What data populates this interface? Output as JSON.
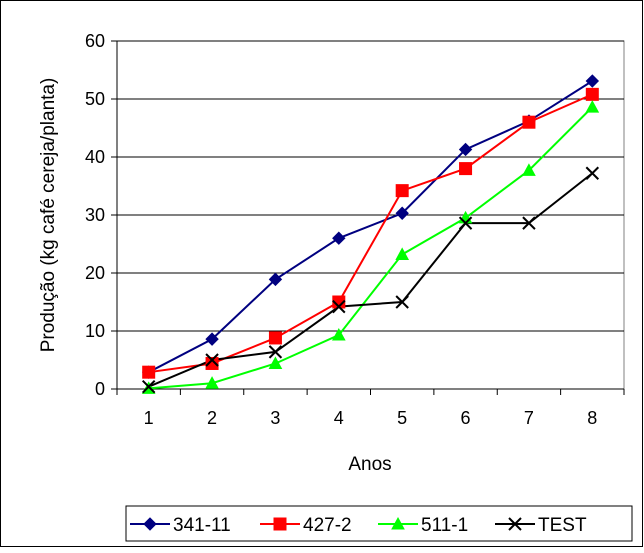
{
  "chart_data": {
    "type": "line",
    "title": "",
    "xlabel": "Anos",
    "ylabel": "Produção (kg café cereja/planta)",
    "categories": [
      "1",
      "2",
      "3",
      "4",
      "5",
      "6",
      "7",
      "8"
    ],
    "ylim": [
      0,
      60
    ],
    "yticks": [
      "0",
      "10",
      "20",
      "30",
      "40",
      "50",
      "60"
    ],
    "grid": "horizontal",
    "legend_position": "bottom",
    "series": [
      {
        "name": "341-11",
        "color": "#000080",
        "marker": "diamond",
        "values": [
          2.9,
          8.6,
          18.9,
          26.0,
          30.3,
          41.3,
          46.2,
          53.1
        ]
      },
      {
        "name": "427-2",
        "color": "#FF0000",
        "marker": "square",
        "values": [
          2.9,
          4.4,
          8.8,
          15.0,
          34.2,
          38.0,
          46.0,
          50.8
        ]
      },
      {
        "name": "511-1",
        "color": "#00FF00",
        "marker": "triangle",
        "values": [
          0.1,
          1.0,
          4.4,
          9.3,
          23.2,
          29.5,
          37.7,
          48.6
        ]
      },
      {
        "name": "TEST",
        "color": "#000000",
        "marker": "x",
        "values": [
          0.4,
          5.0,
          6.4,
          14.2,
          15.0,
          28.6,
          28.6,
          37.2
        ]
      }
    ]
  }
}
